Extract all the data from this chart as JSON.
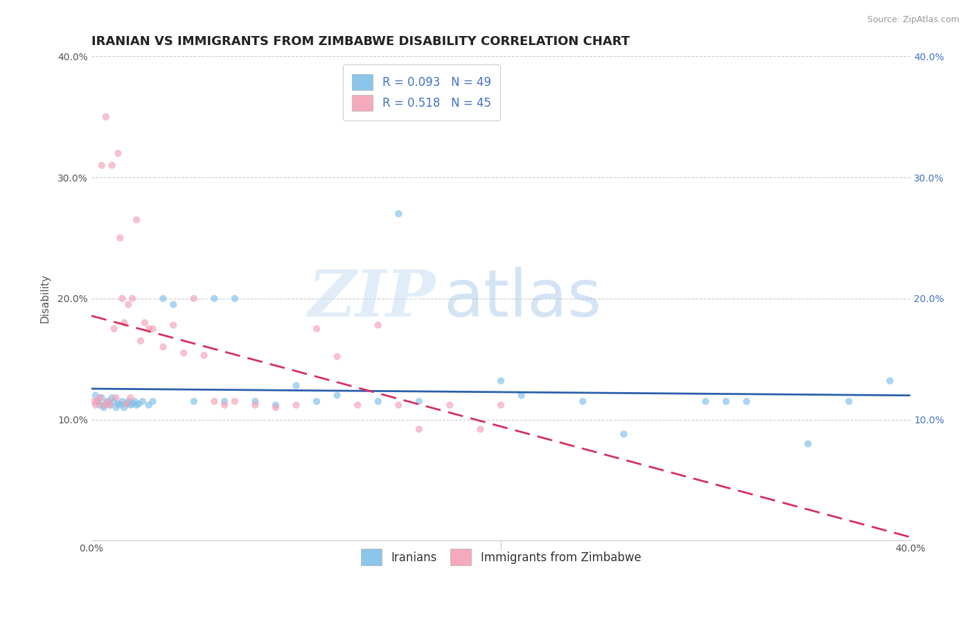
{
  "title": "IRANIAN VS IMMIGRANTS FROM ZIMBABWE DISABILITY CORRELATION CHART",
  "source": "Source: ZipAtlas.com",
  "ylabel": "Disability",
  "xlim": [
    0.0,
    0.4
  ],
  "ylim": [
    0.0,
    0.4
  ],
  "grid_color": "#cccccc",
  "watermark_zip": "ZIP",
  "watermark_atlas": "atlas",
  "legend_R1": "R = 0.093",
  "legend_N1": "N = 49",
  "legend_R2": "R = 0.518",
  "legend_N2": "N = 45",
  "color_iranian": "#7fbfe8",
  "color_zimbabwe": "#f4a0b5",
  "scatter_alpha": 0.65,
  "scatter_size": 55,
  "iranian_x": [
    0.002,
    0.003,
    0.004,
    0.005,
    0.006,
    0.007,
    0.008,
    0.009,
    0.01,
    0.011,
    0.012,
    0.013,
    0.014,
    0.015,
    0.016,
    0.017,
    0.018,
    0.019,
    0.02,
    0.021,
    0.022,
    0.023,
    0.025,
    0.028,
    0.03,
    0.035,
    0.04,
    0.05,
    0.06,
    0.065,
    0.07,
    0.08,
    0.09,
    0.1,
    0.11,
    0.12,
    0.14,
    0.15,
    0.16,
    0.2,
    0.21,
    0.24,
    0.26,
    0.3,
    0.31,
    0.32,
    0.35,
    0.37,
    0.39
  ],
  "iranian_y": [
    0.12,
    0.115,
    0.112,
    0.118,
    0.11,
    0.113,
    0.115,
    0.112,
    0.118,
    0.115,
    0.11,
    0.113,
    0.112,
    0.115,
    0.11,
    0.113,
    0.115,
    0.112,
    0.113,
    0.115,
    0.112,
    0.113,
    0.115,
    0.112,
    0.115,
    0.2,
    0.195,
    0.115,
    0.2,
    0.115,
    0.2,
    0.115,
    0.112,
    0.128,
    0.115,
    0.12,
    0.115,
    0.27,
    0.115,
    0.132,
    0.12,
    0.115,
    0.088,
    0.115,
    0.115,
    0.115,
    0.08,
    0.115,
    0.132
  ],
  "zimbabwe_x": [
    0.001,
    0.002,
    0.003,
    0.004,
    0.005,
    0.006,
    0.007,
    0.008,
    0.009,
    0.01,
    0.011,
    0.012,
    0.013,
    0.014,
    0.015,
    0.016,
    0.017,
    0.018,
    0.019,
    0.02,
    0.022,
    0.024,
    0.026,
    0.028,
    0.03,
    0.035,
    0.04,
    0.045,
    0.05,
    0.055,
    0.06,
    0.065,
    0.07,
    0.08,
    0.09,
    0.1,
    0.11,
    0.12,
    0.13,
    0.14,
    0.15,
    0.16,
    0.175,
    0.19,
    0.2
  ],
  "zimbabwe_y": [
    0.115,
    0.112,
    0.115,
    0.118,
    0.31,
    0.112,
    0.35,
    0.115,
    0.112,
    0.31,
    0.175,
    0.118,
    0.32,
    0.25,
    0.2,
    0.18,
    0.113,
    0.195,
    0.118,
    0.2,
    0.265,
    0.165,
    0.18,
    0.175,
    0.175,
    0.16,
    0.178,
    0.155,
    0.2,
    0.153,
    0.115,
    0.112,
    0.115,
    0.112,
    0.11,
    0.112,
    0.175,
    0.152,
    0.112,
    0.178,
    0.112,
    0.092,
    0.112,
    0.092,
    0.112
  ],
  "reg_line_color_iranian": "#2b5fad",
  "reg_line_color_zimbabwe": "#d63060",
  "title_fontsize": 13,
  "axis_label_fontsize": 11,
  "tick_fontsize": 10,
  "legend_fontsize": 12
}
